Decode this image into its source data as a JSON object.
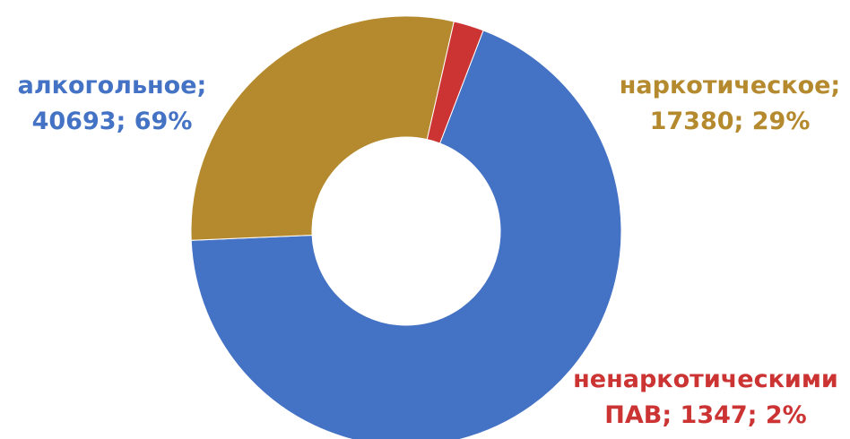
{
  "chart_data": {
    "type": "donut",
    "title": "",
    "series": [
      {
        "values": [
          40693,
          17380,
          1347
        ],
        "percents": [
          69,
          29,
          2
        ],
        "categories": [
          "алкогольное",
          "наркотическое",
          "ненаркотическими ПАВ"
        ],
        "colors": [
          "#4472c4",
          "#b58a2e",
          "#cc3333"
        ]
      }
    ],
    "labels": [
      {
        "line1": "алкогольное;",
        "line2": "40693; 69%"
      },
      {
        "line1": "наркотическое;",
        "line2": "17380; 29%"
      },
      {
        "line1": "ненаркотическими",
        "line2": "ПАВ; 1347; 2%"
      }
    ],
    "legend": "none"
  }
}
